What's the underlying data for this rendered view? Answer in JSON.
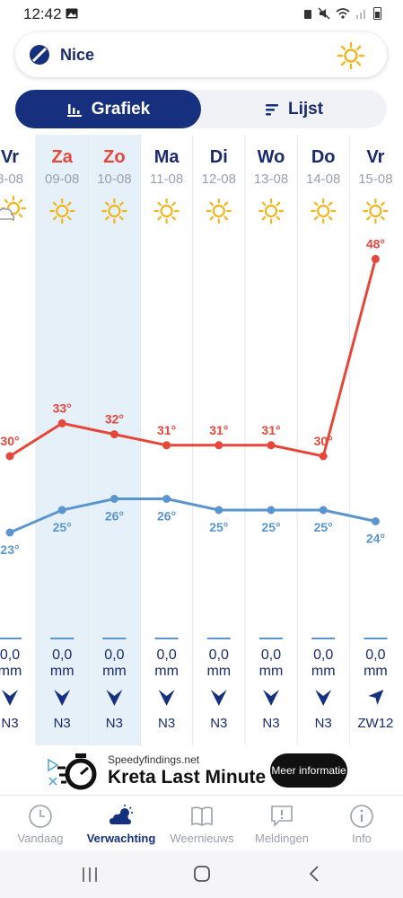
{
  "status": {
    "time": "12:42"
  },
  "search": {
    "city": "Nice"
  },
  "view_toggle": {
    "chart_label": "Grafiek",
    "list_label": "Lijst"
  },
  "chart_data": {
    "type": "line",
    "days": [
      {
        "day": "Vr",
        "date": "8-08",
        "icon": "cloud-sun-icon",
        "max": 30,
        "min": 23,
        "precip": "0,0",
        "unit": "mm",
        "wind": "N3",
        "wind_dir": "N"
      },
      {
        "day": "Za",
        "date": "09-08",
        "icon": "sun-icon",
        "max": 33,
        "min": 25,
        "precip": "0,0",
        "unit": "mm",
        "wind": "N3",
        "wind_dir": "N"
      },
      {
        "day": "Zo",
        "date": "10-08",
        "icon": "sun-icon",
        "max": 32,
        "min": 26,
        "precip": "0,0",
        "unit": "mm",
        "wind": "N3",
        "wind_dir": "N"
      },
      {
        "day": "Ma",
        "date": "11-08",
        "icon": "sun-icon",
        "max": 31,
        "min": 26,
        "precip": "0,0",
        "unit": "mm",
        "wind": "N3",
        "wind_dir": "N"
      },
      {
        "day": "Di",
        "date": "12-08",
        "icon": "sun-icon",
        "max": 31,
        "min": 25,
        "precip": "0,0",
        "unit": "mm",
        "wind": "N3",
        "wind_dir": "N"
      },
      {
        "day": "Wo",
        "date": "13-08",
        "icon": "sun-icon",
        "max": 31,
        "min": 25,
        "precip": "0,0",
        "unit": "mm",
        "wind": "N3",
        "wind_dir": "N"
      },
      {
        "day": "Do",
        "date": "14-08",
        "icon": "sun-icon",
        "max": 30,
        "min": 25,
        "precip": "0,0",
        "unit": "mm",
        "wind": "N3",
        "wind_dir": "N"
      },
      {
        "day": "Vr",
        "date": "15-08",
        "icon": "sun-icon",
        "max": 48,
        "min": 24,
        "precip": "0,0",
        "unit": "mm",
        "wind": "ZW12",
        "wind_dir": "ZW"
      }
    ],
    "weekend_indices": [
      1,
      2
    ],
    "max_color": "#e5483b",
    "min_color": "#5b95d0",
    "weekend_day_color": "#e5483b",
    "weekday_color": "#1a2a6c",
    "highlight_color": "#e6f0f8"
  },
  "ad": {
    "source": "Speedyfindings.net",
    "title": "Kreta Last Minute",
    "cta": "Meer informatie"
  },
  "nav": [
    {
      "label": "Vandaag",
      "icon": "clock-icon",
      "active": false
    },
    {
      "label": "Verwachting",
      "icon": "cloud-sun-icon",
      "active": true
    },
    {
      "label": "Weernieuws",
      "icon": "book-icon",
      "active": false
    },
    {
      "label": "Meldingen",
      "icon": "message-alert-icon",
      "active": false
    },
    {
      "label": "Info",
      "icon": "info-icon",
      "active": false
    }
  ],
  "colors": {
    "navy": "#16307e",
    "sun": "#f2b51c",
    "inactive": "#9aa0aa"
  }
}
